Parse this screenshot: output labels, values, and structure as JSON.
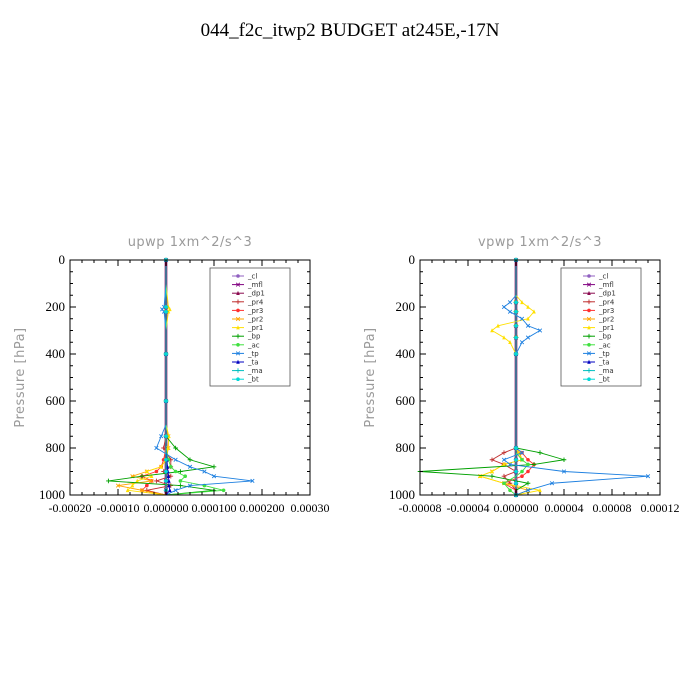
{
  "title": "044_f2c_itwp2  BUDGET at245E,-17N",
  "chart_data": [
    {
      "type": "line",
      "title": "upwp   1xm^2/s^3",
      "ylabel": "Pressure [hPa]",
      "xlabel": "",
      "xlim": [
        -0.0002,
        0.0003
      ],
      "ylim": [
        1000,
        0
      ],
      "x_ticks": [
        "-0.00020",
        "-0.00010",
        "0.000000",
        "0.000100",
        "0.000200",
        "0.00030"
      ],
      "x_tick_values": [
        -0.0002,
        -0.0001,
        0,
        0.0001,
        0.0002,
        0.0003
      ],
      "y_ticks": [
        "0",
        "200",
        "400",
        "600",
        "800",
        "1000"
      ],
      "y_tick_values": [
        0,
        200,
        400,
        600,
        800,
        1000
      ],
      "legend_position": "top-right",
      "pressure": [
        0,
        100,
        200,
        210,
        220,
        300,
        400,
        500,
        600,
        700,
        750,
        800,
        850,
        880,
        900,
        920,
        940,
        960,
        980,
        1000
      ],
      "series": [
        {
          "name": "_cl",
          "color": "#9060c0",
          "values": [
            0,
            0,
            0,
            0,
            0,
            0,
            0,
            0,
            0,
            0,
            0,
            0,
            0,
            0,
            0,
            0,
            0,
            0,
            0,
            0
          ]
        },
        {
          "name": "_mfl",
          "color": "#800080",
          "values": [
            0,
            0,
            0,
            0,
            0,
            0,
            0,
            0,
            0,
            0,
            0,
            0,
            0,
            0,
            0,
            0,
            0,
            0,
            0,
            0
          ]
        },
        {
          "name": "_dp1",
          "color": "#8b0a50",
          "values": [
            0,
            0,
            0,
            0,
            0,
            0,
            0,
            0,
            0,
            0,
            0,
            0,
            0,
            0,
            0,
            0,
            0,
            0,
            0,
            0
          ]
        },
        {
          "name": "_pr4",
          "color": "#c03030",
          "values": [
            0,
            0,
            0,
            0,
            0,
            0,
            0,
            0,
            0,
            0,
            0,
            -5e-06,
            1e-05,
            1e-05,
            -5e-06,
            1e-05,
            -2e-05,
            1e-05,
            -4e-05,
            0
          ]
        },
        {
          "name": "_pr3",
          "color": "#ff3030",
          "values": [
            0,
            0,
            0,
            0,
            0,
            0,
            0,
            0,
            0,
            0,
            0,
            0,
            -5e-06,
            -1e-05,
            -2e-05,
            -5e-05,
            -3e-05,
            -4e-05,
            -5e-05,
            0
          ]
        },
        {
          "name": "_pr2",
          "color": "#ffa500",
          "values": [
            0,
            0,
            0,
            0,
            0,
            0,
            0,
            0,
            0,
            0,
            5e-06,
            5e-06,
            0,
            -1e-05,
            -4e-05,
            -7e-05,
            -3e-05,
            -0.0001,
            -5e-05,
            0
          ]
        },
        {
          "name": "_pr1",
          "color": "#ffe000",
          "values": [
            0,
            0,
            5e-06,
            8e-06,
            5e-06,
            0,
            0,
            0,
            0,
            0,
            6e-06,
            4e-06,
            0,
            -1e-05,
            -4e-05,
            -3e-05,
            -6e-05,
            -7e-05,
            -8e-05,
            0
          ]
        },
        {
          "name": "_bp",
          "color": "#00a000",
          "values": [
            0,
            0,
            0,
            0,
            0,
            0,
            0,
            0,
            0,
            0,
            0,
            2e-05,
            5e-05,
            0.0001,
            3e-05,
            -5e-05,
            -0.00012,
            3e-05,
            0.0001,
            0
          ]
        },
        {
          "name": "_ac",
          "color": "#40e040",
          "values": [
            0,
            0,
            0,
            0,
            0,
            0,
            0,
            0,
            0,
            0,
            0,
            0,
            5e-06,
            1e-05,
            2e-05,
            4e-05,
            3e-05,
            8e-05,
            0.00012,
            0
          ]
        },
        {
          "name": "_tp",
          "color": "#1e80e0",
          "values": [
            0,
            0,
            -4e-06,
            -8e-06,
            -4e-06,
            0,
            0,
            0,
            0,
            0,
            -1e-05,
            -2e-05,
            2e-05,
            5e-05,
            8e-05,
            0.0001,
            0.00018,
            5e-05,
            2e-05,
            0
          ]
        },
        {
          "name": "_ta",
          "color": "#0000c0",
          "values": [
            0,
            0,
            0,
            0,
            0,
            0,
            0,
            0,
            0,
            0,
            0,
            0,
            2e-06,
            3e-06,
            4e-06,
            5e-06,
            6e-06,
            6e-06,
            8e-06,
            0
          ]
        },
        {
          "name": "_ma",
          "color": "#00bfbf",
          "values": [
            0,
            0,
            0,
            0,
            0,
            0,
            0,
            0,
            0,
            0,
            0,
            0,
            0,
            0,
            0,
            0,
            0,
            0,
            0,
            0
          ]
        },
        {
          "name": "_bt",
          "color": "#00d8d8",
          "values": [
            0,
            0,
            0,
            0,
            0,
            0,
            0,
            0,
            0,
            0,
            0,
            0,
            0,
            0,
            0,
            0,
            0,
            0,
            0,
            0
          ]
        }
      ]
    },
    {
      "type": "line",
      "title": "vpwp   1xm^2/s^3",
      "ylabel": "Pressure [hPa]",
      "xlabel": "",
      "xlim": [
        -8e-05,
        0.00012
      ],
      "ylim": [
        1000,
        0
      ],
      "x_ticks": [
        "-0.00008",
        "-0.00004",
        "0.000000",
        "0.00004",
        "0.00008",
        "0.00012"
      ],
      "x_tick_values": [
        -8e-05,
        -4e-05,
        0,
        4e-05,
        8e-05,
        0.00012
      ],
      "y_ticks": [
        "0",
        "200",
        "400",
        "600",
        "800",
        "1000"
      ],
      "y_tick_values": [
        0,
        200,
        400,
        600,
        800,
        1000
      ],
      "legend_position": "top-right",
      "pressure": [
        0,
        150,
        180,
        200,
        220,
        250,
        280,
        300,
        330,
        350,
        400,
        600,
        800,
        820,
        850,
        870,
        900,
        920,
        950,
        980,
        1000
      ],
      "series": [
        {
          "name": "_cl",
          "color": "#9060c0",
          "values": [
            0,
            0,
            0,
            0,
            0,
            0,
            0,
            0,
            0,
            0,
            0,
            0,
            0,
            0,
            0,
            0,
            0,
            0,
            0,
            0,
            0
          ]
        },
        {
          "name": "_mfl",
          "color": "#800080",
          "values": [
            0,
            0,
            0,
            0,
            0,
            0,
            0,
            0,
            0,
            0,
            0,
            0,
            0,
            0,
            0,
            0,
            0,
            0,
            0,
            0,
            0
          ]
        },
        {
          "name": "_dp1",
          "color": "#8b0a50",
          "values": [
            0,
            0,
            0,
            0,
            0,
            0,
            0,
            0,
            0,
            0,
            0,
            0,
            0,
            0,
            0,
            0,
            0,
            0,
            0,
            0,
            0
          ]
        },
        {
          "name": "_pr4",
          "color": "#c03030",
          "values": [
            0,
            0,
            0,
            0,
            0,
            0,
            0,
            0,
            0,
            0,
            0,
            0,
            0,
            -1e-05,
            -2e-05,
            -1e-05,
            0,
            -1e-05,
            -5e-06,
            0,
            0
          ]
        },
        {
          "name": "_pr3",
          "color": "#ff3030",
          "values": [
            0,
            0,
            0,
            0,
            0,
            0,
            0,
            0,
            0,
            0,
            0,
            0,
            0,
            5e-06,
            1e-05,
            1.5e-05,
            1e-05,
            5e-06,
            -1e-05,
            0,
            0
          ]
        },
        {
          "name": "_pr2",
          "color": "#ffa500",
          "values": [
            0,
            0,
            0,
            0,
            0,
            0,
            0,
            0,
            0,
            0,
            0,
            0,
            0,
            3e-06,
            5e-06,
            -1e-05,
            -2e-05,
            -3e-05,
            -1e-05,
            1e-05,
            0
          ]
        },
        {
          "name": "_pr1",
          "color": "#ffe000",
          "values": [
            0,
            0,
            5e-06,
            1e-05,
            1.5e-05,
            1e-05,
            -1.5e-05,
            -2e-05,
            -1e-05,
            -5e-06,
            0,
            0,
            0,
            2e-06,
            5e-06,
            -1e-05,
            -2e-05,
            -3e-05,
            -1e-05,
            2e-05,
            0
          ]
        },
        {
          "name": "_bp",
          "color": "#00a000",
          "values": [
            0,
            0,
            0,
            0,
            0,
            0,
            0,
            0,
            0,
            0,
            0,
            0,
            0,
            2e-05,
            4e-05,
            1.5e-05,
            -8e-05,
            -2e-05,
            1e-05,
            0,
            0
          ]
        },
        {
          "name": "_ac",
          "color": "#40e040",
          "values": [
            0,
            0,
            0,
            0,
            0,
            0,
            0,
            0,
            0,
            0,
            0,
            0,
            0,
            0,
            5e-06,
            1e-05,
            5e-06,
            0,
            -1e-05,
            -5e-06,
            0
          ]
        },
        {
          "name": "_tp",
          "color": "#1e80e0",
          "values": [
            0,
            0,
            -5e-06,
            -1e-05,
            -5e-06,
            5e-06,
            1e-05,
            2e-05,
            1e-05,
            5e-06,
            0,
            0,
            0,
            5e-06,
            -1e-05,
            -5e-06,
            4e-05,
            0.00011,
            3e-05,
            1e-05,
            0
          ]
        },
        {
          "name": "_ta",
          "color": "#0000c0",
          "values": [
            0,
            0,
            0,
            0,
            0,
            0,
            0,
            0,
            0,
            0,
            0,
            0,
            0,
            0,
            0,
            0,
            0,
            0,
            0,
            0,
            0
          ]
        },
        {
          "name": "_ma",
          "color": "#00bfbf",
          "values": [
            0,
            0,
            0,
            0,
            0,
            0,
            0,
            0,
            0,
            0,
            0,
            0,
            0,
            0,
            0,
            0,
            0,
            0,
            0,
            0,
            0
          ]
        },
        {
          "name": "_bt",
          "color": "#00d8d8",
          "values": [
            0,
            0,
            0,
            0,
            0,
            0,
            0,
            0,
            0,
            0,
            0,
            0,
            0,
            0,
            0,
            0,
            0,
            0,
            0,
            0,
            0
          ]
        }
      ]
    }
  ]
}
